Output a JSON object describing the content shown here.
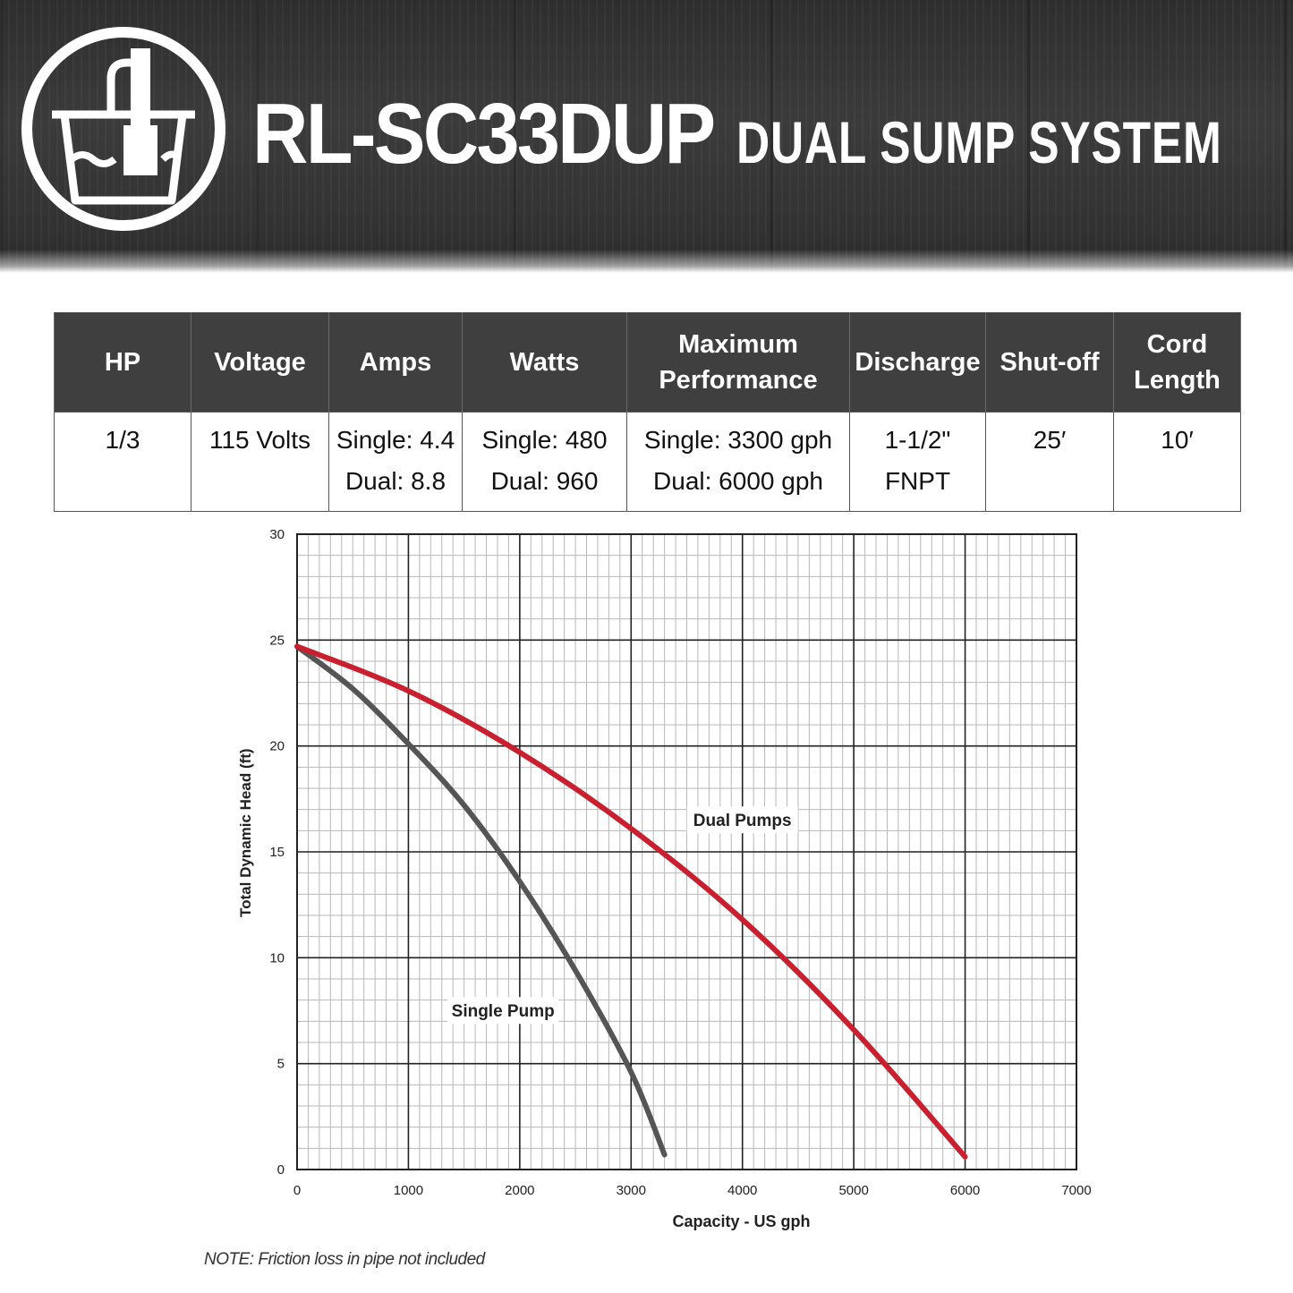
{
  "header": {
    "model": "RL-SC33DUP",
    "subtitle": "DUAL SUMP SYSTEM",
    "logo_icon": "sump-pump-icon"
  },
  "specs": {
    "columns": [
      "HP",
      "Voltage",
      "Amps",
      "Watts",
      "Maximum\nPerformance",
      "Discharge",
      "Shut-off",
      "Cord\nLength"
    ],
    "values": [
      "1/3",
      "115 Volts",
      "Single: 4.4\nDual: 8.8",
      "Single: 480\nDual: 960",
      "Single: 3300 gph\nDual: 6000 gph",
      "1-1/2\" FNPT",
      "25′",
      "10′"
    ]
  },
  "chart_data": {
    "type": "line",
    "title": "",
    "xlabel": "Capacity - US gph",
    "ylabel": "Total Dynamic Head (ft)",
    "xlim": [
      0,
      7000
    ],
    "ylim": [
      0,
      30
    ],
    "x_ticks": [
      0,
      1000,
      2000,
      3000,
      4000,
      5000,
      6000,
      7000
    ],
    "y_ticks": [
      0,
      5,
      10,
      15,
      20,
      25,
      30
    ],
    "grid": true,
    "series": [
      {
        "name": "Single Pump",
        "color": "#555555",
        "x": [
          0,
          500,
          1000,
          1500,
          2000,
          2500,
          3000,
          3300
        ],
        "y": [
          24.7,
          22.7,
          20.1,
          17.2,
          13.6,
          9.4,
          4.6,
          0.7
        ]
      },
      {
        "name": "Dual Pumps",
        "color": "#c8202f",
        "x": [
          0,
          1000,
          2000,
          3000,
          4000,
          5000,
          6000
        ],
        "y": [
          24.7,
          22.6,
          19.7,
          16.1,
          11.8,
          6.6,
          0.6
        ]
      }
    ],
    "annotations": [
      {
        "text": "Dual Pumps",
        "x": 4000,
        "y": 16.3
      },
      {
        "text": "Single Pump",
        "x": 1850,
        "y": 7.3
      }
    ],
    "note": "NOTE: Friction loss in pipe not included"
  }
}
